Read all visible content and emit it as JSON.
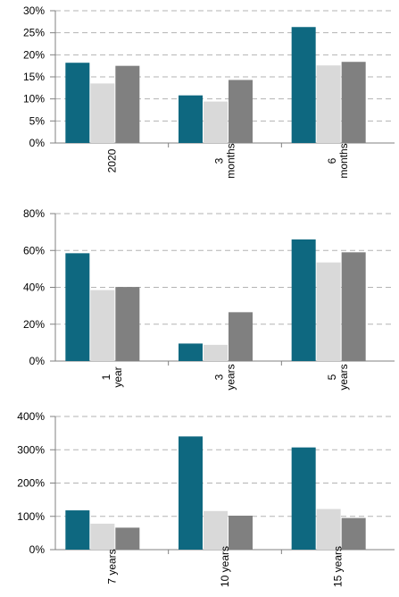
{
  "colors": {
    "series": [
      "#0e6880",
      "#d9d9d9",
      "#808080"
    ],
    "grid": "#b3b3b3",
    "axis": "#808080",
    "text": "#000000"
  },
  "chart_data": [
    {
      "type": "bar",
      "categories": [
        [
          "2020"
        ],
        [
          "3",
          "months"
        ],
        [
          "6",
          "months"
        ]
      ],
      "series": [
        {
          "values": [
            18.2,
            10.8,
            26.3
          ]
        },
        {
          "values": [
            13.5,
            9.4,
            17.6
          ]
        },
        {
          "values": [
            17.5,
            14.3,
            18.4
          ]
        }
      ],
      "ylim": [
        0,
        30
      ],
      "yticks": [
        0,
        5,
        10,
        15,
        20,
        25,
        30
      ],
      "tick_suffix": "%",
      "grid": true,
      "legend": false
    },
    {
      "type": "bar",
      "categories": [
        [
          "1",
          "year"
        ],
        [
          "3",
          "years"
        ],
        [
          "5",
          "years"
        ]
      ],
      "series": [
        {
          "values": [
            58.5,
            9.5,
            66
          ]
        },
        {
          "values": [
            38.5,
            8.8,
            53.5
          ]
        },
        {
          "values": [
            40.2,
            26.5,
            59
          ]
        }
      ],
      "ylim": [
        0,
        80
      ],
      "yticks": [
        0,
        20,
        40,
        60,
        80
      ],
      "tick_suffix": "%",
      "grid": true,
      "legend": false
    },
    {
      "type": "bar",
      "categories": [
        [
          "7 years"
        ],
        [
          "10 years"
        ],
        [
          "15 years"
        ]
      ],
      "series": [
        {
          "values": [
            118,
            340,
            307
          ]
        },
        {
          "values": [
            78,
            116,
            122
          ]
        },
        {
          "values": [
            66,
            102,
            95
          ]
        }
      ],
      "ylim": [
        0,
        400
      ],
      "yticks": [
        0,
        100,
        200,
        300,
        400
      ],
      "tick_suffix": "%",
      "grid": true,
      "legend": false
    }
  ]
}
